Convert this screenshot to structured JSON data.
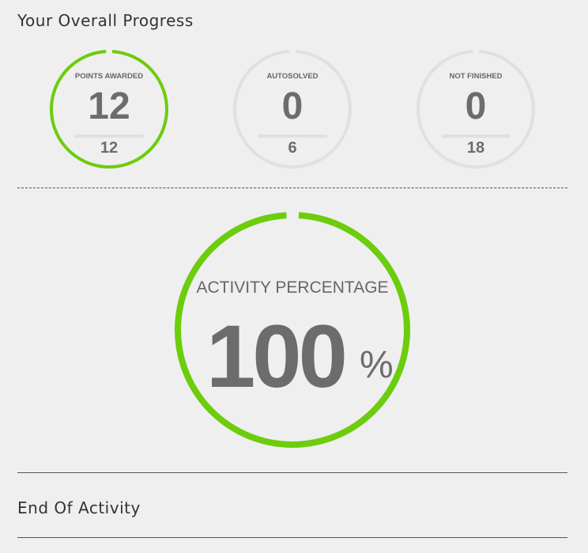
{
  "header": {
    "title": "Your Overall Progress"
  },
  "colors": {
    "accent": "#6ccd0c",
    "track": "#e0e0e0"
  },
  "stats": [
    {
      "label": "POINTS AWARDED",
      "value": "12",
      "total": "12",
      "progress": 1.0
    },
    {
      "label": "AUTOSOLVED",
      "value": "0",
      "total": "6",
      "progress": 0
    },
    {
      "label": "NOT FINISHED",
      "value": "0",
      "total": "18",
      "progress": 0
    }
  ],
  "activity": {
    "label": "ACTIVITY PERCENTAGE",
    "value": "100",
    "unit": "%",
    "progress": 1.0
  },
  "footer": {
    "title": "End Of Activity"
  }
}
